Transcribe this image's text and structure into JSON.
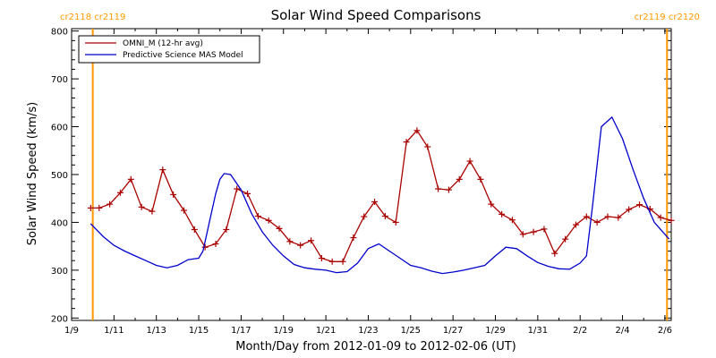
{
  "chart_data": {
    "type": "line",
    "title": "Solar Wind Speed Comparisons",
    "xlabel": "Month/Day from 2012-01-09 to 2012-02-06 (UT)",
    "ylabel": "Solar Wind Speed (km/s)",
    "x_ticks": [
      "1/9",
      "1/11",
      "1/13",
      "1/15",
      "1/17",
      "1/19",
      "1/21",
      "1/23",
      "1/25",
      "1/27",
      "1/29",
      "1/31",
      "2/2",
      "2/4",
      "2/6"
    ],
    "x_tick_days": [
      0,
      2,
      4,
      6,
      8,
      10,
      12,
      14,
      16,
      18,
      20,
      22,
      24,
      26,
      28
    ],
    "xlim_days": [
      0,
      28.3
    ],
    "ylim": [
      195,
      805
    ],
    "y_ticks": [
      200,
      300,
      400,
      500,
      600,
      700,
      800
    ],
    "carrington_markers": [
      {
        "day": 1.0,
        "label": "cr2118 cr2119",
        "color": "#ff9900"
      },
      {
        "day": 28.1,
        "label": "cr2119 cr2120",
        "color": "#ff9900"
      }
    ],
    "legend_position": "top-left",
    "series": [
      {
        "name": "OMNI_M (12-hr avg)",
        "color": "#aa0000",
        "marker": "plus",
        "x_days": [
          0.9,
          1.3,
          1.8,
          2.3,
          2.8,
          3.3,
          3.8,
          4.3,
          4.8,
          5.3,
          5.8,
          6.3,
          6.8,
          7.3,
          7.8,
          8.3,
          8.8,
          9.3,
          9.8,
          10.3,
          10.8,
          11.3,
          11.8,
          12.3,
          12.8,
          13.3,
          13.8,
          14.3,
          14.8,
          15.3,
          15.8,
          16.3,
          16.8,
          17.3,
          17.8,
          18.3,
          18.8,
          19.3,
          19.8,
          20.3,
          20.8,
          21.3,
          21.8,
          22.3,
          22.8,
          23.3,
          23.8,
          24.3,
          24.8,
          25.3,
          25.8,
          26.3,
          26.8,
          27.3,
          27.8,
          28.3
        ],
        "values": [
          430,
          430,
          438,
          462,
          490,
          432,
          423,
          510,
          458,
          425,
          385,
          348,
          355,
          385,
          470,
          460,
          413,
          404,
          387,
          360,
          352,
          362,
          325,
          318,
          318,
          368,
          412,
          443,
          413,
          400,
          568,
          592,
          558,
          470,
          468,
          490,
          528,
          490,
          438,
          417,
          405,
          375,
          380,
          386,
          335,
          365,
          395,
          412,
          400,
          412,
          410,
          427,
          437,
          428,
          410,
          404
        ]
      },
      {
        "name": "Predictive Science MAS Model",
        "color": "#0000cc",
        "marker": "none",
        "x_days": [
          0.9,
          1.5,
          2.0,
          2.5,
          3.0,
          3.5,
          4.0,
          4.5,
          5.0,
          5.5,
          6.0,
          6.2,
          6.5,
          6.8,
          7.0,
          7.2,
          7.5,
          8.0,
          8.5,
          9.0,
          9.5,
          10.0,
          10.5,
          11.0,
          11.5,
          12.0,
          12.5,
          13.0,
          13.5,
          14.0,
          14.5,
          15.0,
          15.5,
          16.0,
          16.5,
          17.0,
          17.5,
          18.0,
          18.5,
          19.0,
          19.5,
          20.0,
          20.5,
          21.0,
          21.5,
          22.0,
          22.5,
          23.0,
          23.5,
          24.0,
          24.3,
          24.6,
          25.0,
          25.5,
          26.0,
          26.5,
          27.0,
          27.5,
          28.0,
          28.2
        ],
        "values": [
          397,
          370,
          352,
          340,
          330,
          320,
          310,
          305,
          310,
          322,
          325,
          340,
          400,
          460,
          490,
          502,
          500,
          468,
          418,
          380,
          352,
          330,
          312,
          305,
          302,
          300,
          295,
          297,
          315,
          345,
          355,
          340,
          325,
          310,
          305,
          298,
          293,
          296,
          300,
          305,
          310,
          330,
          348,
          345,
          330,
          316,
          308,
          303,
          302,
          315,
          330,
          440,
          600,
          620,
          575,
          510,
          450,
          400,
          375,
          365
        ]
      }
    ]
  }
}
